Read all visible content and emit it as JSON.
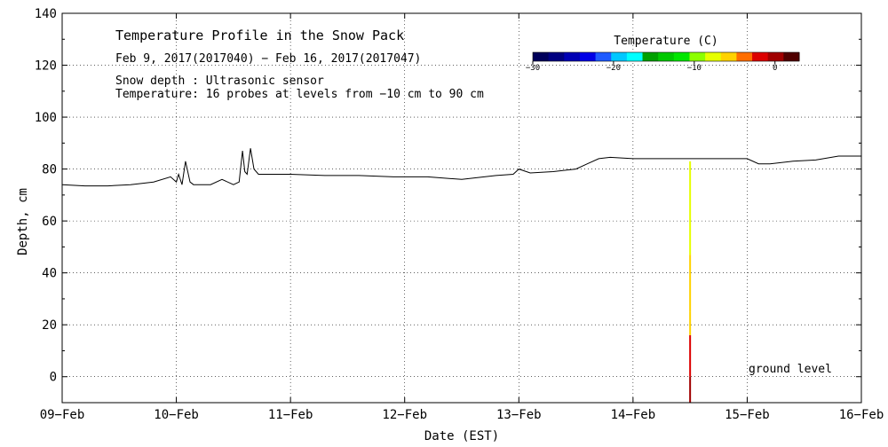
{
  "chart_data": {
    "type": "line",
    "title": "Temperature Profile in the Snow Pack",
    "subtitle": "Feb  9, 2017(2017040) − Feb 16, 2017(2017047)",
    "notes": [
      "Snow depth : Ultrasonic sensor",
      "Temperature: 16 probes at levels from −10 cm to 90 cm"
    ],
    "xlabel": "Date (EST)",
    "ylabel": "Depth, cm",
    "xlim": [
      0,
      7
    ],
    "ylim": [
      -10,
      140
    ],
    "x_ticks": [
      "09−Feb",
      "10−Feb",
      "11−Feb",
      "12−Feb",
      "13−Feb",
      "14−Feb",
      "15−Feb",
      "16−Feb"
    ],
    "y_ticks": [
      0,
      20,
      40,
      60,
      80,
      100,
      120,
      140
    ],
    "grid": true,
    "annotation": "ground level",
    "colorbar": {
      "title": "Temperature (C)",
      "range": [
        -30,
        3
      ],
      "tick_labels": [
        "−30",
        "−20",
        "−10",
        "0"
      ],
      "tick_values": [
        -30,
        -20,
        -10,
        0
      ],
      "colors": [
        "#00005a",
        "#000080",
        "#0000b4",
        "#0000e6",
        "#1e5aff",
        "#00c8ff",
        "#00ffff",
        "#00a000",
        "#00c800",
        "#00e600",
        "#8cff00",
        "#e6ff00",
        "#ffd200",
        "#ff6e00",
        "#dc0000",
        "#a00000",
        "#500000"
      ]
    },
    "series": [
      {
        "type": "snow_depth",
        "x": [
          0,
          0.2,
          0.4,
          0.6,
          0.8,
          0.95,
          1.0,
          1.02,
          1.05,
          1.08,
          1.12,
          1.15,
          1.2,
          1.3,
          1.4,
          1.5,
          1.55,
          1.58,
          1.6,
          1.62,
          1.65,
          1.68,
          1.72,
          1.76,
          1.8,
          2.0,
          2.3,
          2.6,
          2.9,
          3.2,
          3.5,
          3.8,
          3.95,
          4.0,
          4.1,
          4.3,
          4.5,
          4.6,
          4.7,
          4.8,
          5.0,
          5.2,
          5.4,
          5.6,
          5.8,
          6.0,
          6.1,
          6.2,
          6.4,
          6.6,
          6.8,
          7.0
        ],
        "values": [
          74,
          73.5,
          73.5,
          74,
          75,
          77,
          75,
          78,
          74,
          83,
          75,
          74,
          74,
          74,
          76,
          74,
          75,
          87,
          79,
          78,
          88,
          80,
          78,
          78,
          78,
          78,
          77.5,
          77.5,
          77,
          77,
          76,
          77.5,
          78,
          80,
          78.5,
          79,
          80,
          82,
          84,
          84.5,
          84,
          84,
          84,
          84,
          84,
          84,
          82,
          82,
          83,
          83.5,
          85,
          85
        ]
      },
      {
        "type": "temperature_profile",
        "x": 5.5,
        "segments": [
          {
            "from": -10,
            "to": 0,
            "temperature": -0.5
          },
          {
            "from": 0,
            "to": 16,
            "temperature": -1.5
          },
          {
            "from": 16,
            "to": 25,
            "temperature": -5
          },
          {
            "from": 25,
            "to": 47,
            "temperature": -6
          },
          {
            "from": 47,
            "to": 83,
            "temperature": -8
          }
        ]
      }
    ]
  }
}
